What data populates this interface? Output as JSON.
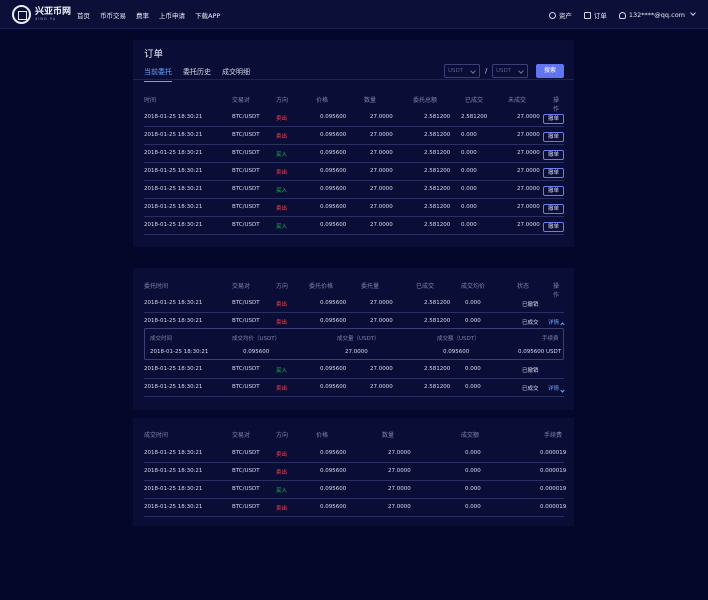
{
  "brand": {
    "name": "兴亚币网",
    "sub": "XING YA"
  },
  "nav": [
    "首页",
    "币币交易",
    "费率",
    "上币申请",
    "下载APP"
  ],
  "user_nav": {
    "assets": "资产",
    "orders": "订单",
    "account": "132****@qq.com"
  },
  "page_title": "订单",
  "tabs": [
    "当前委托",
    "委托历史",
    "成交明细"
  ],
  "filter": {
    "base": "USDT",
    "quote": "USDT",
    "slash": "/",
    "search": "搜索"
  },
  "current": {
    "headers": [
      "时间",
      "交易对",
      "方向",
      "价格",
      "数量",
      "委托总额",
      "已成交",
      "未成交",
      "操作"
    ],
    "cancel_label": "撤单",
    "rows": [
      [
        "2018-01-25  18:30:21",
        "BTC/USDT",
        "卖出",
        "0.095600",
        "27.0000",
        "2.581200",
        "2.581200",
        "27.0000"
      ],
      [
        "2018-01-25  18:30:21",
        "BTC/USDT",
        "卖出",
        "0.095600",
        "27.0000",
        "2.581200",
        "0.000",
        "27.0000"
      ],
      [
        "2018-01-25  18:30:21",
        "BTC/USDT",
        "买入",
        "0.095600",
        "27.0000",
        "2.581200",
        "0.000",
        "27.0000"
      ],
      [
        "2018-01-25  18:30:21",
        "BTC/USDT",
        "卖出",
        "0.095600",
        "27.0000",
        "2.581200",
        "0.000",
        "27.0000"
      ],
      [
        "2018-01-25  18:30:21",
        "BTC/USDT",
        "买入",
        "0.095600",
        "27.0000",
        "2.581200",
        "0.000",
        "27.0000"
      ],
      [
        "2018-01-25  18:30:21",
        "BTC/USDT",
        "卖出",
        "0.095600",
        "27.0000",
        "2.581200",
        "0.000",
        "27.0000"
      ],
      [
        "2018-01-25  18:30:21",
        "BTC/USDT",
        "买入",
        "0.095600",
        "27.0000",
        "2.581200",
        "0.000",
        "27.0000"
      ]
    ]
  },
  "history": {
    "headers": [
      "委托时间",
      "交易对",
      "方向",
      "委托价格",
      "委托量",
      "已成交",
      "成交均价",
      "状态",
      "操作"
    ],
    "detail_label": "详情",
    "rows": [
      [
        "2018-01-25  18:30:21",
        "BTC/USDT",
        "卖出",
        "0.095600",
        "27.0000",
        "2.581200",
        "0.000",
        "已撤销",
        ""
      ],
      [
        "2018-01-25  18:30:21",
        "BTC/USDT",
        "卖出",
        "0.095600",
        "27.0000",
        "2.581200",
        "0.000",
        "已成交",
        "详情"
      ],
      [
        "2018-01-25  18:30:21",
        "BTC/USDT",
        "买入",
        "0.095600",
        "27.0000",
        "2.581200",
        "0.000",
        "已撤销",
        ""
      ],
      [
        "2018-01-25  18:30:21",
        "BTC/USDT",
        "卖出",
        "0.095600",
        "27.0000",
        "2.581200",
        "0.000",
        "已成交",
        "详情"
      ]
    ],
    "sub_headers": [
      "成交时间",
      "成交均价（USDT）",
      "成交量（USDT）",
      "成交额（USDT）",
      "手续费"
    ],
    "sub_row": [
      "2018-01-25  18:30:21",
      "0.095600",
      "27.0000",
      "0.095600",
      "0.095600 USDT"
    ]
  },
  "fills": {
    "headers": [
      "成交时间",
      "交易对",
      "方向",
      "价格",
      "数量",
      "成交额",
      "手续费"
    ],
    "rows": [
      [
        "2018-01-25  18:30:21",
        "BTC/USDT",
        "卖出",
        "0.095600",
        "27.0000",
        "0.000",
        "0.000019"
      ],
      [
        "2018-01-25  18:30:21",
        "BTC/USDT",
        "卖出",
        "0.095600",
        "27.0000",
        "0.000",
        "0.000019"
      ],
      [
        "2018-01-25  18:30:21",
        "BTC/USDT",
        "买入",
        "0.095600",
        "27.0000",
        "0.000",
        "0.000019"
      ],
      [
        "2018-01-25  18:30:21",
        "BTC/USDT",
        "卖出",
        "0.095600",
        "27.0000",
        "0.000",
        "0.000019"
      ]
    ]
  },
  "colors": {
    "sell": "#ff4a55",
    "buy": "#27c95a",
    "accent": "#6ba3ff",
    "button": "#6275f0"
  }
}
